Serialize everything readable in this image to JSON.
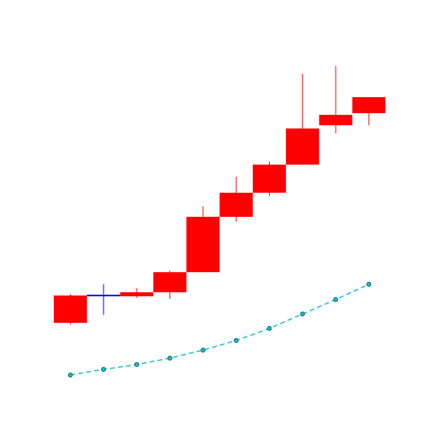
{
  "chart_data": [
    {
      "type": "candlestick",
      "categories": [
        null,
        null,
        null,
        null,
        null,
        null,
        null,
        null,
        null,
        null
      ],
      "open": [
        131,
        165,
        164,
        169,
        194,
        263,
        293,
        328,
        377,
        392
      ],
      "high": [
        167,
        179,
        174,
        196,
        276,
        313,
        332,
        441,
        451,
        412
      ],
      "low": [
        129,
        141,
        162,
        161,
        194,
        257,
        289,
        328,
        367,
        377
      ],
      "close": [
        165,
        165,
        169,
        194,
        263,
        293,
        328,
        373,
        390,
        412
      ],
      "increasing_color": "#ff0000",
      "decreasing_color": "#008000",
      "flat_color": "#0000ff",
      "ylim": [
        0,
        533
      ]
    },
    {
      "type": "line",
      "categories": [
        null,
        null,
        null,
        null,
        null,
        null,
        null,
        null,
        null,
        null
      ],
      "values": [
        66,
        73,
        79,
        87,
        97,
        109,
        124,
        142,
        160,
        179
      ],
      "color": "#17becf",
      "marker_edge_color": "#0b5c63",
      "dashed": true,
      "ylim": [
        0,
        533
      ]
    }
  ]
}
